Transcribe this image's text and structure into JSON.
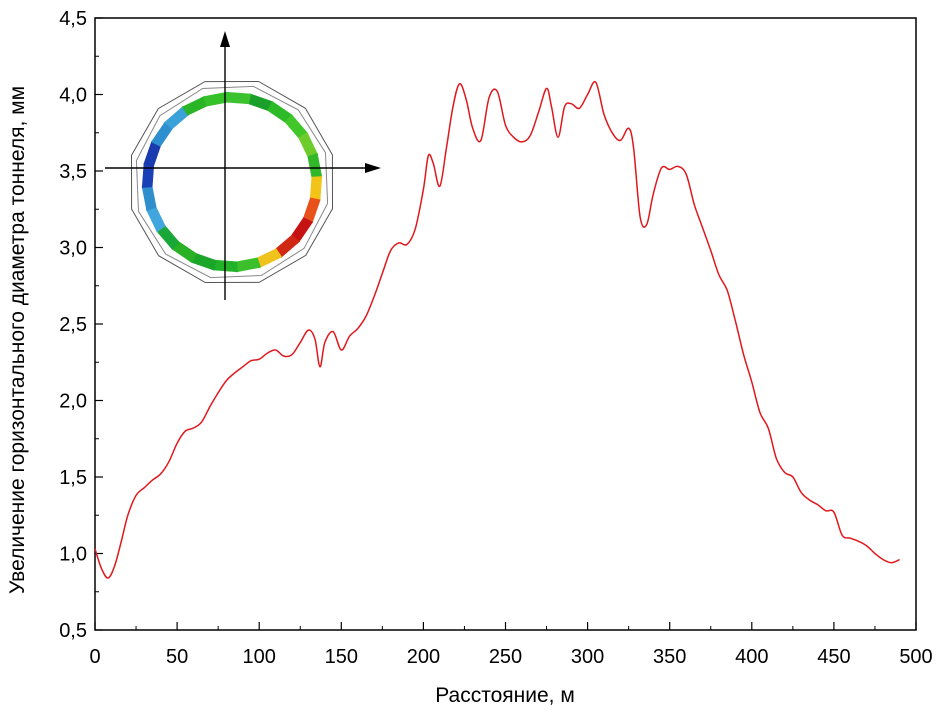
{
  "chart_data": {
    "type": "line",
    "xlabel": "Расстояние, м",
    "ylabel": "Увеличение горизонтального диаметра тоннеля, мм",
    "xlim": [
      0,
      500
    ],
    "ylim": [
      0.5,
      4.5
    ],
    "x_ticks": [
      "0",
      "50",
      "100",
      "150",
      "200",
      "250",
      "300",
      "350",
      "400",
      "450",
      "500"
    ],
    "y_ticks": [
      "0,5",
      "1,0",
      "1,5",
      "2,0",
      "2,5",
      "3,0",
      "3,5",
      "4,0",
      "4,5"
    ],
    "grid": false,
    "legend": "none",
    "series": [
      {
        "color": "#e0181c",
        "x": [
          0,
          4,
          8,
          12,
          16,
          20,
          25,
          30,
          35,
          40,
          45,
          50,
          55,
          60,
          65,
          70,
          75,
          80,
          85,
          90,
          95,
          100,
          105,
          110,
          115,
          120,
          125,
          130,
          134,
          137,
          140,
          145,
          150,
          155,
          160,
          165,
          170,
          175,
          180,
          185,
          190,
          195,
          200,
          203,
          206,
          210,
          214,
          218,
          222,
          226,
          230,
          235,
          240,
          245,
          250,
          255,
          260,
          265,
          270,
          275,
          278,
          282,
          286,
          290,
          295,
          300,
          305,
          310,
          315,
          320,
          325,
          328,
          332,
          336,
          340,
          345,
          350,
          355,
          360,
          365,
          370,
          375,
          380,
          385,
          390,
          395,
          400,
          405,
          410,
          415,
          420,
          425,
          430,
          435,
          440,
          445,
          450,
          455,
          460,
          465,
          470,
          475,
          480,
          485,
          490
        ],
        "y": [
          1.03,
          0.9,
          0.84,
          0.92,
          1.08,
          1.25,
          1.38,
          1.43,
          1.48,
          1.52,
          1.6,
          1.72,
          1.8,
          1.82,
          1.86,
          1.96,
          2.05,
          2.13,
          2.18,
          2.22,
          2.26,
          2.27,
          2.31,
          2.33,
          2.29,
          2.3,
          2.38,
          2.46,
          2.4,
          2.22,
          2.38,
          2.45,
          2.33,
          2.42,
          2.47,
          2.55,
          2.68,
          2.83,
          2.98,
          3.03,
          3.02,
          3.12,
          3.38,
          3.6,
          3.55,
          3.4,
          3.65,
          3.92,
          4.07,
          3.97,
          3.78,
          3.7,
          3.98,
          4.02,
          3.8,
          3.72,
          3.69,
          3.73,
          3.88,
          4.04,
          3.92,
          3.72,
          3.92,
          3.94,
          3.91,
          4.0,
          4.08,
          3.87,
          3.75,
          3.7,
          3.78,
          3.65,
          3.2,
          3.15,
          3.35,
          3.52,
          3.51,
          3.53,
          3.48,
          3.28,
          3.13,
          2.98,
          2.82,
          2.72,
          2.52,
          2.3,
          2.12,
          1.92,
          1.82,
          1.62,
          1.53,
          1.5,
          1.4,
          1.35,
          1.32,
          1.28,
          1.27,
          1.12,
          1.1,
          1.08,
          1.05,
          1.0,
          0.96,
          0.94,
          0.96
        ]
      }
    ]
  },
  "inset": {
    "description_free": true,
    "segment_colors": [
      "#1aa02a",
      "#2cbb26",
      "#41c72a",
      "#6dcc2c",
      "#30b82a",
      "#f2c418",
      "#e8521a",
      "#c61212",
      "#d02814",
      "#f0c21c",
      "#3bc02c",
      "#22b22a",
      "#1aa628",
      "#29b024",
      "#19a838",
      "#41a6de",
      "#2f8fcc",
      "#1a40b8",
      "#1a3ab0",
      "#2d8fd0",
      "#3aa2d8",
      "#29b526",
      "#36c02a",
      "#3cc22e"
    ]
  }
}
